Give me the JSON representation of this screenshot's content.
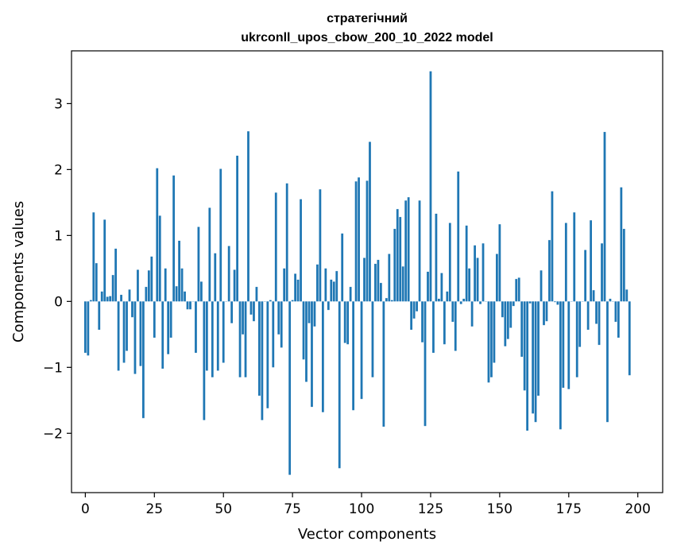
{
  "chart_data": {
    "type": "bar",
    "title": "стратегічний",
    "subtitle": "ukrconll_upos_cbow_200_10_2022 model",
    "xlabel": "Vector components",
    "ylabel": "Components values",
    "xlim": [
      -5,
      209
    ],
    "ylim": [
      -2.9,
      3.8
    ],
    "xticks": [
      0,
      25,
      50,
      75,
      100,
      125,
      150,
      175,
      200
    ],
    "yticks": [
      -2,
      -1,
      0,
      1,
      2,
      3
    ],
    "xtick_labels": [
      "0",
      "25",
      "50",
      "75",
      "100",
      "125",
      "150",
      "175",
      "200"
    ],
    "ytick_labels": [
      "−2",
      "−1",
      "0",
      "1",
      "2",
      "3"
    ],
    "bar_color": "#1f77b4",
    "grid": false,
    "values": [
      -0.78,
      -0.82,
      0.02,
      1.35,
      0.58,
      -0.43,
      0.15,
      1.24,
      0.07,
      0.08,
      0.4,
      0.8,
      -1.05,
      0.1,
      -0.93,
      -0.75,
      0.18,
      -0.24,
      -1.1,
      0.48,
      -0.98,
      -1.77,
      0.22,
      0.47,
      0.68,
      -0.55,
      2.02,
      1.3,
      -1.02,
      0.5,
      -0.8,
      -0.55,
      1.91,
      0.23,
      0.92,
      0.5,
      0.15,
      -0.12,
      -0.12,
      0.0,
      -0.78,
      1.13,
      0.3,
      -1.8,
      -1.05,
      1.42,
      -1.15,
      0.73,
      -1.05,
      2.01,
      -0.93,
      0.0,
      0.84,
      -0.33,
      0.48,
      2.21,
      -1.15,
      -0.5,
      -1.15,
      2.58,
      -0.2,
      -0.3,
      0.22,
      -1.43,
      -1.8,
      0.0,
      -1.62,
      0.02,
      -1.0,
      1.65,
      -0.5,
      -0.7,
      0.5,
      1.79,
      -2.63,
      0.02,
      0.42,
      0.33,
      1.55,
      -0.88,
      -1.22,
      -0.33,
      -1.6,
      -0.38,
      0.56,
      1.7,
      -1.68,
      0.5,
      -0.13,
      0.33,
      0.3,
      0.46,
      -2.53,
      1.03,
      -0.63,
      -0.65,
      0.22,
      -1.65,
      1.82,
      1.88,
      -1.48,
      0.66,
      1.83,
      2.42,
      -1.15,
      0.57,
      0.63,
      0.28,
      -1.9,
      0.05,
      0.72,
      0.02,
      1.1,
      1.4,
      1.28,
      0.53,
      1.53,
      1.58,
      -0.43,
      -0.26,
      -0.15,
      1.53,
      -0.62,
      -1.89,
      0.45,
      3.49,
      -0.78,
      1.33,
      0.04,
      0.43,
      -0.65,
      0.15,
      1.19,
      -0.31,
      -0.75,
      1.97,
      -0.04,
      0.04,
      1.15,
      0.5,
      -0.38,
      0.85,
      0.66,
      -0.04,
      0.88,
      0.0,
      -1.23,
      -1.15,
      -0.93,
      0.72,
      1.17,
      -0.24,
      -0.68,
      -0.57,
      -0.4,
      -0.07,
      0.34,
      0.36,
      -0.84,
      -1.35,
      -1.96,
      -0.03,
      -1.7,
      -1.83,
      -1.43,
      0.47,
      -0.36,
      -0.3,
      0.93,
      1.67,
      -0.01,
      -0.05,
      -1.94,
      -1.31,
      1.19,
      -1.33,
      0.0,
      1.35,
      -1.15,
      -0.69,
      0.0,
      0.78,
      -0.43,
      1.23,
      0.17,
      -0.34,
      -0.66,
      0.88,
      2.57,
      -1.83,
      0.04,
      0.0,
      -0.31,
      -0.55,
      1.73,
      1.1,
      0.18,
      -1.12
    ]
  }
}
